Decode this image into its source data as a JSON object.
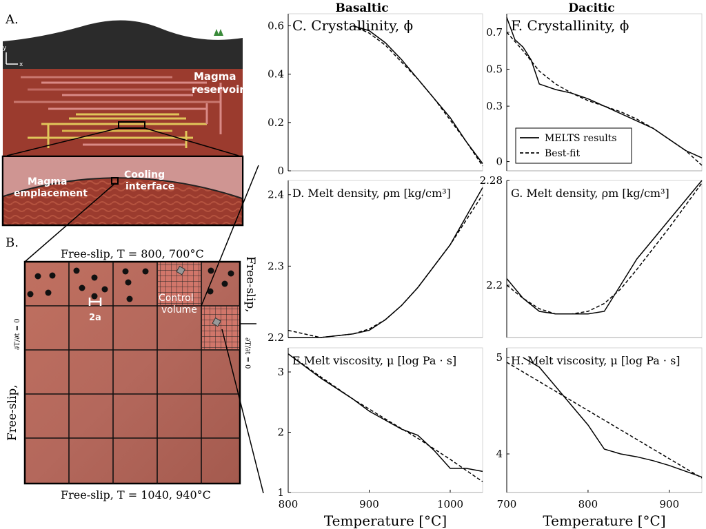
{
  "panel_a": {
    "letter": "A.",
    "axis_y": "y",
    "axis_x": "x",
    "reservoir_label_1": "Magma",
    "reservoir_label_2": "reservoir",
    "emplacement_label_1": "Magma",
    "emplacement_label_2": "emplacement",
    "interface_label_1": "Cooling",
    "interface_label_2": "interface",
    "colors": {
      "sky": "#ffffff",
      "cover": "#2b2b2b",
      "crust": "#9b3b2e",
      "sill_pink": "#d98a86",
      "sill_yellow": "#e0c65a",
      "tree": "#3a8a3a"
    }
  },
  "panel_b": {
    "letter": "B.",
    "top_label": "Free-slip,  T = 800,  700°C",
    "bottom_label": "Free-slip,  T = 1040,  940°C",
    "left_label": "Free-slip,",
    "left_bc": "∂T/∂t = 0",
    "right_label": "Free-slip,",
    "right_bc": "∂T/∂t = 0",
    "control_label_1": "Control",
    "control_label_2": "volume",
    "radius_label": "2a",
    "colors": {
      "fill": "#b5675a",
      "grid": "#111111"
    }
  },
  "columns": {
    "basaltic": "Basaltic",
    "dacitic": "Dacitic"
  },
  "legend": {
    "solid": "MELTS results",
    "dashed": "Best-fit"
  },
  "chart_data": [
    {
      "id": "C",
      "type": "line",
      "title": "C. Crystallinity, ϕ",
      "xlim": [
        800,
        1040
      ],
      "ylim": [
        0,
        0.65
      ],
      "yticks": [
        "0",
        "0.2",
        "0.4",
        "0.6"
      ],
      "ytick_values": [
        0,
        0.2,
        0.4,
        0.6
      ],
      "series": [
        {
          "name": "MELTS results",
          "style": "solid",
          "x": [
            880,
            900,
            920,
            940,
            960,
            980,
            1000,
            1020,
            1040
          ],
          "y": [
            0.6,
            0.58,
            0.53,
            0.46,
            0.38,
            0.3,
            0.22,
            0.12,
            0.03
          ]
        },
        {
          "name": "Best-fit",
          "style": "dashed",
          "x": [
            880,
            900,
            920,
            940,
            960,
            980,
            1000,
            1020,
            1040
          ],
          "y": [
            0.6,
            0.57,
            0.52,
            0.45,
            0.38,
            0.3,
            0.21,
            0.12,
            0.02
          ]
        }
      ]
    },
    {
      "id": "D",
      "type": "line",
      "title": "D. Melt density, ρm [kg/cm³]",
      "xlim": [
        800,
        1040
      ],
      "ylim": [
        2.2,
        2.42
      ],
      "yticks": [
        "2.2",
        "2.3",
        "2.4"
      ],
      "ytick_values": [
        2.2,
        2.3,
        2.4
      ],
      "series": [
        {
          "name": "MELTS results",
          "style": "solid",
          "x": [
            800,
            840,
            880,
            900,
            920,
            940,
            960,
            980,
            1000,
            1020,
            1040
          ],
          "y": [
            2.2,
            2.2,
            2.205,
            2.21,
            2.225,
            2.245,
            2.27,
            2.3,
            2.33,
            2.37,
            2.41
          ]
        },
        {
          "name": "Best-fit",
          "style": "dashed",
          "x": [
            800,
            840,
            880,
            900,
            920,
            940,
            960,
            980,
            1000,
            1020,
            1040
          ],
          "y": [
            2.21,
            2.2,
            2.205,
            2.212,
            2.225,
            2.245,
            2.27,
            2.3,
            2.33,
            2.365,
            2.4
          ]
        }
      ]
    },
    {
      "id": "E",
      "type": "line",
      "title": "E.Melt viscosity, μ [log Pa · s]",
      "xlim": [
        800,
        1040
      ],
      "ylim": [
        1,
        3.4
      ],
      "yticks": [
        "1",
        "2",
        "3"
      ],
      "ytick_values": [
        1,
        2,
        3
      ],
      "xticks": [
        "800",
        "900",
        "1000"
      ],
      "xtick_values": [
        800,
        900,
        1000
      ],
      "xlabel": "Temperature [°C]",
      "series": [
        {
          "name": "MELTS results",
          "style": "solid",
          "x": [
            800,
            840,
            880,
            900,
            920,
            940,
            960,
            980,
            990,
            1000,
            1020,
            1040
          ],
          "y": [
            3.3,
            2.9,
            2.55,
            2.35,
            2.2,
            2.05,
            1.95,
            1.7,
            1.55,
            1.4,
            1.4,
            1.35
          ]
        },
        {
          "name": "Best-fit",
          "style": "dashed",
          "x": [
            800,
            840,
            880,
            920,
            960,
            1000,
            1040
          ],
          "y": [
            3.3,
            2.92,
            2.55,
            2.22,
            1.9,
            1.55,
            1.18
          ]
        }
      ]
    },
    {
      "id": "F",
      "type": "line",
      "title": "F. Crystallinity, ϕ",
      "xlim": [
        700,
        940
      ],
      "ylim": [
        -0.05,
        0.8
      ],
      "yticks": [
        "0",
        "0.3",
        "0.5",
        "0.7"
      ],
      "ytick_values": [
        0,
        0.3,
        0.5,
        0.7
      ],
      "series": [
        {
          "name": "MELTS results",
          "style": "solid",
          "x": [
            700,
            710,
            720,
            730,
            740,
            760,
            780,
            800,
            820,
            840,
            860,
            880,
            900,
            920,
            940
          ],
          "y": [
            0.78,
            0.66,
            0.62,
            0.55,
            0.42,
            0.39,
            0.37,
            0.34,
            0.3,
            0.26,
            0.22,
            0.18,
            0.12,
            0.06,
            0.02
          ]
        },
        {
          "name": "Best-fit",
          "style": "dashed",
          "x": [
            700,
            720,
            740,
            760,
            780,
            800,
            820,
            840,
            860,
            880,
            900,
            920,
            940
          ],
          "y": [
            0.7,
            0.6,
            0.49,
            0.42,
            0.37,
            0.33,
            0.3,
            0.27,
            0.23,
            0.18,
            0.12,
            0.06,
            -0.02
          ]
        }
      ]
    },
    {
      "id": "G",
      "type": "line",
      "title": "G. Melt density, ρm [kg/cm³]",
      "xlim": [
        700,
        940
      ],
      "ylim": [
        2.16,
        2.28
      ],
      "yticks": [
        "2.2",
        "2.28"
      ],
      "ytick_values": [
        2.2,
        2.28
      ],
      "series": [
        {
          "name": "MELTS results",
          "style": "solid",
          "x": [
            700,
            720,
            740,
            760,
            780,
            800,
            820,
            840,
            860,
            880,
            900,
            920,
            940
          ],
          "y": [
            2.205,
            2.19,
            2.18,
            2.178,
            2.178,
            2.178,
            2.18,
            2.2,
            2.22,
            2.235,
            2.25,
            2.265,
            2.28
          ]
        },
        {
          "name": "Best-fit",
          "style": "dashed",
          "x": [
            700,
            720,
            740,
            760,
            780,
            800,
            820,
            840,
            860,
            880,
            900,
            920,
            940
          ],
          "y": [
            2.2,
            2.19,
            2.182,
            2.178,
            2.178,
            2.18,
            2.186,
            2.197,
            2.212,
            2.228,
            2.244,
            2.261,
            2.278
          ]
        }
      ]
    },
    {
      "id": "H",
      "type": "line",
      "title": "H. Melt viscosity, μ [log Pa · s]",
      "xlim": [
        700,
        940
      ],
      "ylim": [
        3.6,
        5.1
      ],
      "yticks": [
        "4",
        "5"
      ],
      "ytick_values": [
        4,
        5
      ],
      "xticks": [
        "700",
        "800",
        "900"
      ],
      "xtick_values": [
        700,
        800,
        900
      ],
      "xlabel": "Temperature [°C]",
      "series": [
        {
          "name": "MELTS results",
          "style": "solid",
          "x": [
            720,
            740,
            760,
            780,
            800,
            820,
            840,
            860,
            880,
            900,
            920,
            940
          ],
          "y": [
            5.0,
            4.9,
            4.7,
            4.5,
            4.3,
            4.05,
            4.0,
            3.97,
            3.93,
            3.88,
            3.82,
            3.76
          ]
        },
        {
          "name": "Best-fit",
          "style": "dashed",
          "x": [
            700,
            740,
            780,
            820,
            860,
            900,
            940
          ],
          "y": [
            4.95,
            4.75,
            4.55,
            4.35,
            4.15,
            3.95,
            3.75
          ]
        }
      ]
    }
  ]
}
